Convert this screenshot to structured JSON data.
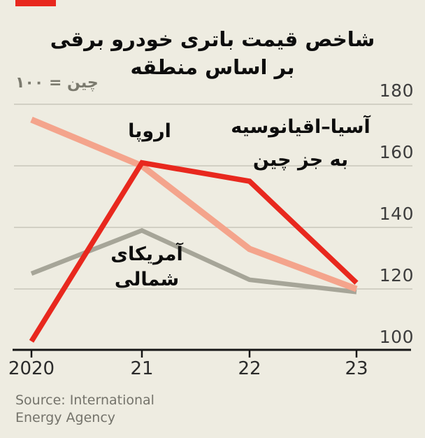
{
  "brand": {
    "tab_color": "#e8281e"
  },
  "title": {
    "line1": "شاخص قیمت باتری خودرو برقی",
    "line2": "بر اساس منطقه"
  },
  "subtitle": "چین = ۱۰۰",
  "source": {
    "line1": "Source: International",
    "line2": "Energy Agency"
  },
  "colors": {
    "background": "#eeece1",
    "gridline": "#c9c7bb",
    "axis": "#161616",
    "asia_red": "#e8281e",
    "europe_salmon": "#f4a48c",
    "north_america_gray": "#a6a598"
  },
  "chart_data": {
    "type": "line",
    "title": "شاخص قیمت باتری خودرو برقی بر اساس منطقه",
    "note": "چین = ۱۰۰",
    "categories": [
      "2020",
      "21",
      "22",
      "23"
    ],
    "yticks": [
      180,
      160,
      140,
      120,
      100
    ],
    "ylim": [
      100,
      180
    ],
    "grid": true,
    "legend_position": "inline-labels",
    "series": [
      {
        "name": "آمریکای شمالی",
        "label_line1": "آمریکای",
        "label_line2": "شمالی",
        "color": "#a6a598",
        "stroke_width": 6.5,
        "values": [
          125,
          139,
          123,
          119
        ]
      },
      {
        "name": "اروپا",
        "label_line1": "اروپا",
        "color": "#f4a48c",
        "stroke_width": 9,
        "values": [
          175,
          160,
          133,
          120
        ]
      },
      {
        "name": "آسیا–اقیانوسیه به جز چین",
        "label_line1": "آسیا–اقیانوسیه",
        "label_line2": "به جز چین",
        "color": "#e8281e",
        "stroke_width": 7.5,
        "values": [
          103,
          161,
          155,
          122
        ]
      }
    ]
  }
}
